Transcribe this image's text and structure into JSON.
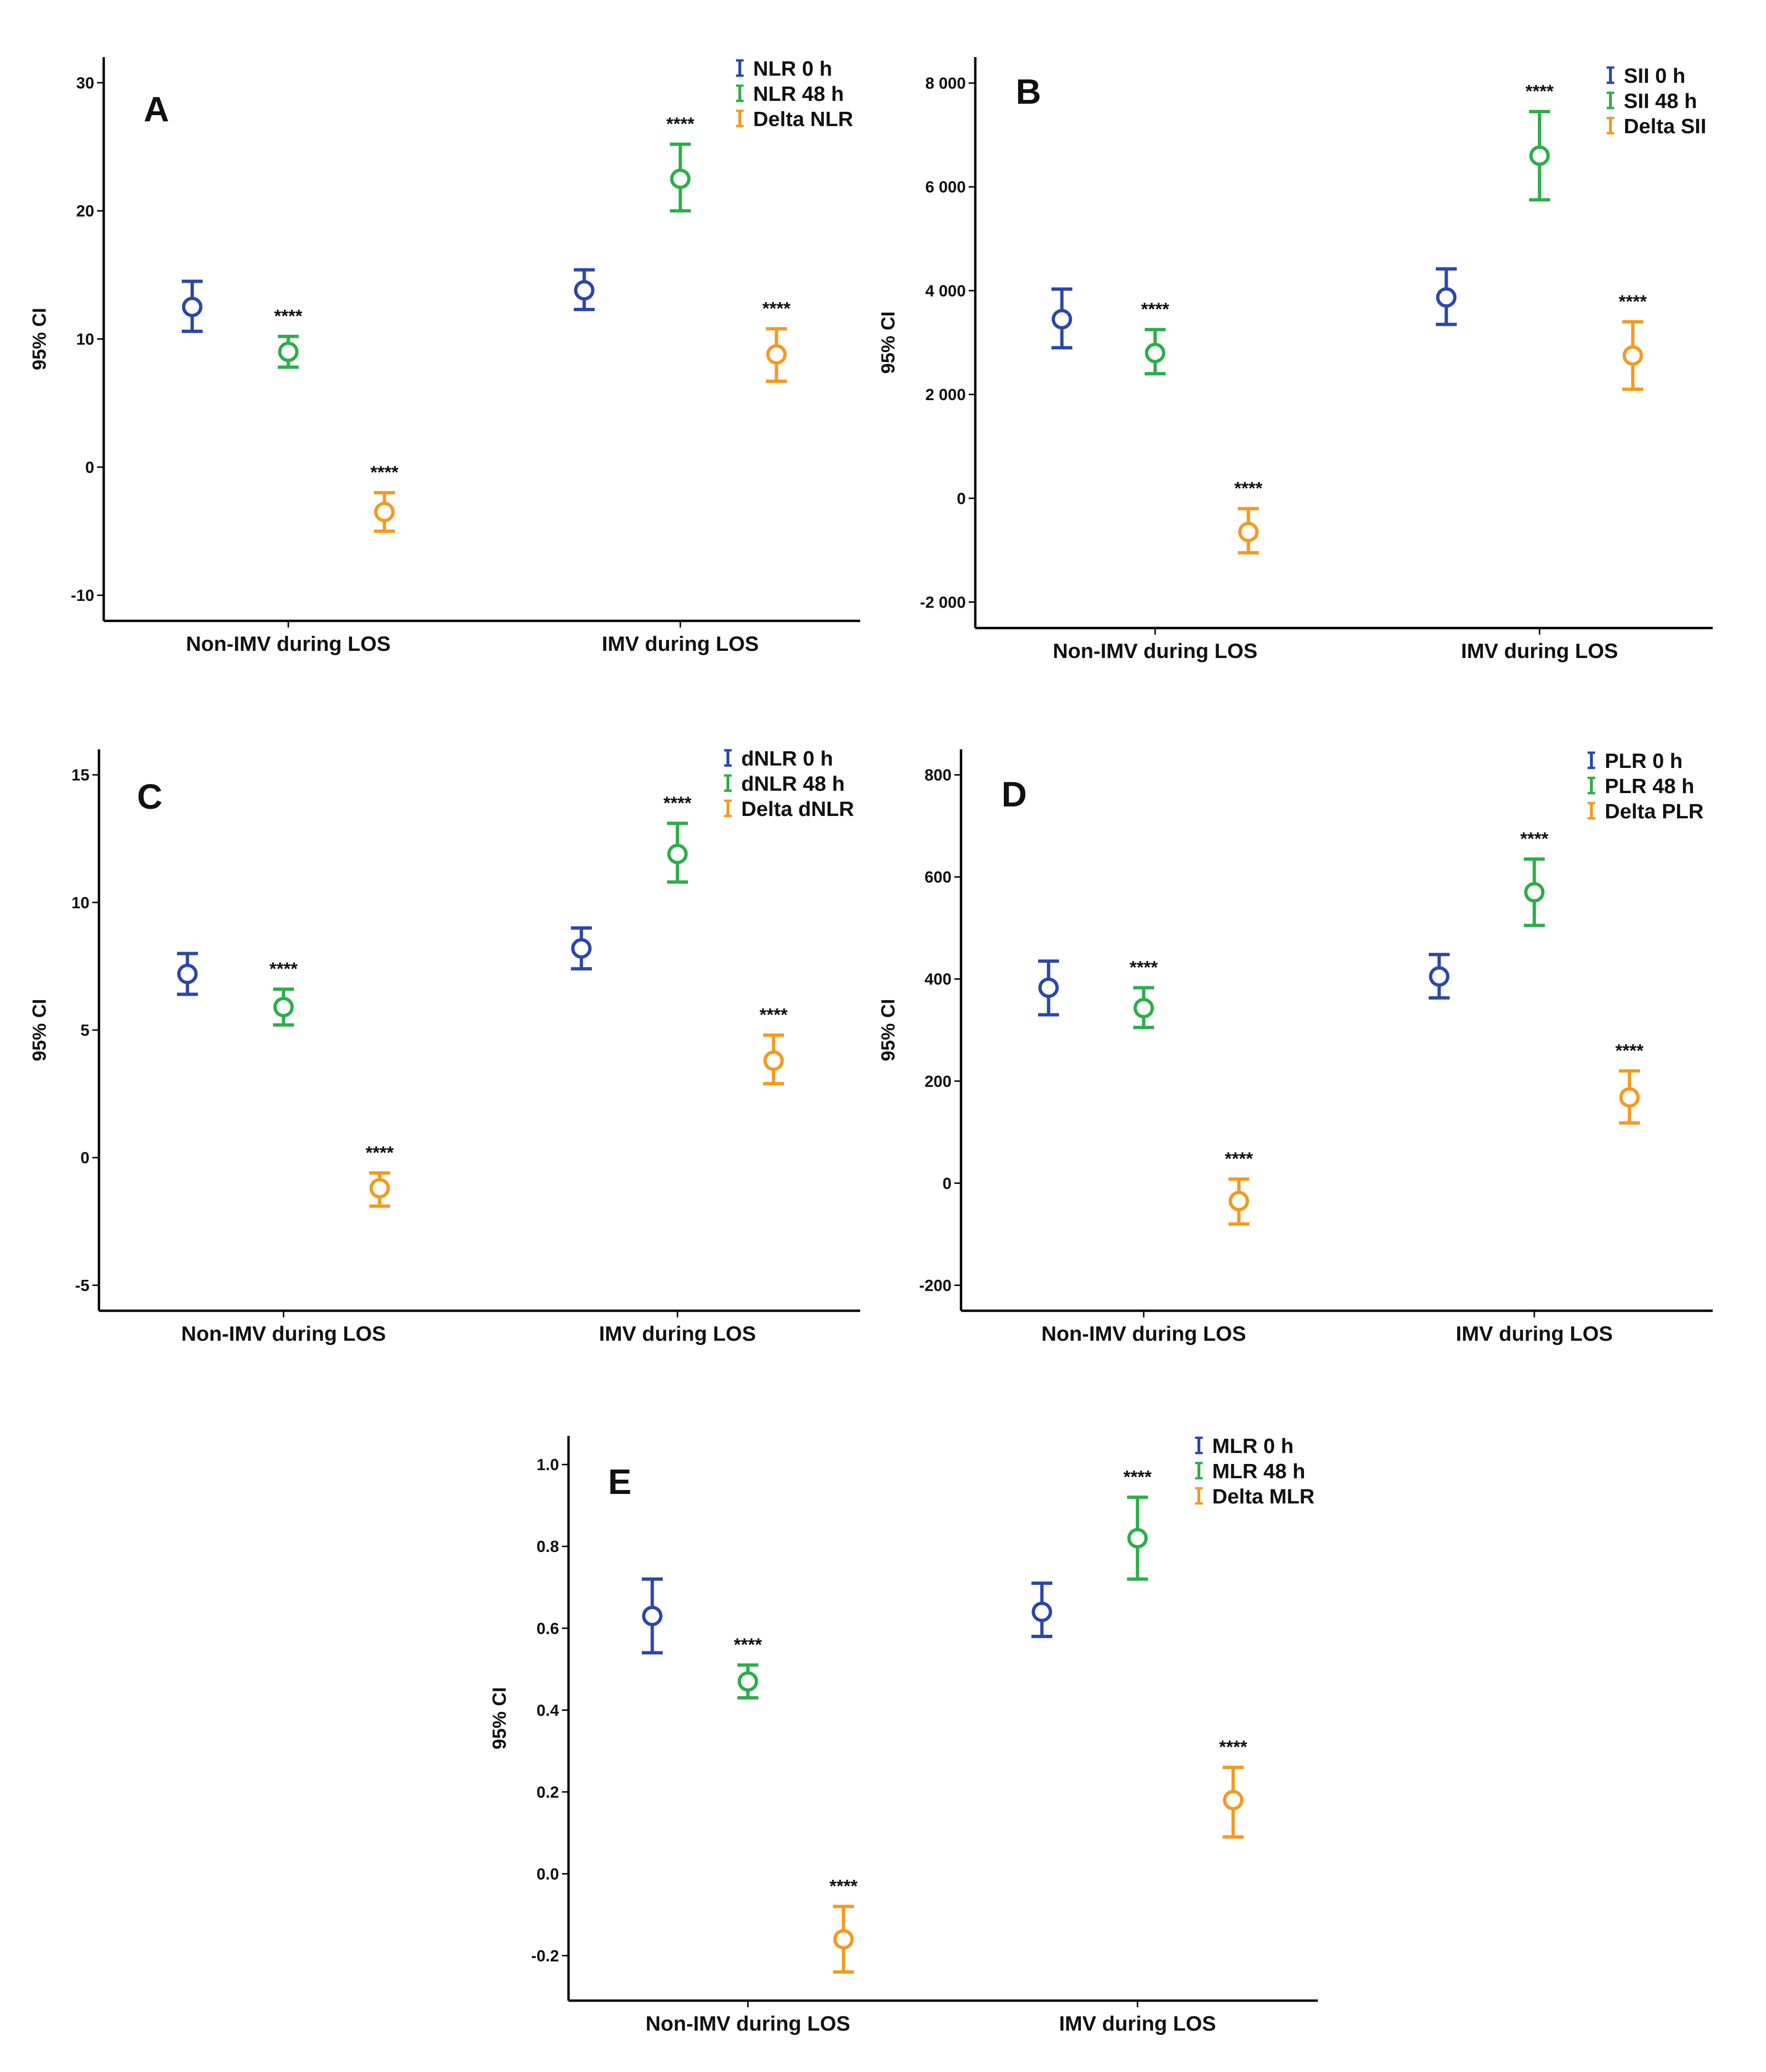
{
  "chart_data": [
    {
      "type": "errorbar",
      "panel": "A",
      "ylabel": "95% CI",
      "categories": [
        "Non-IMV during LOS",
        "IMV during LOS"
      ],
      "yticks": [
        30,
        20,
        10,
        0,
        -10
      ],
      "ylim": [
        -12,
        32
      ],
      "series": [
        {
          "name": "NLR 0 h",
          "color": "#2b48a8",
          "mean": [
            12.5,
            13.8
          ],
          "lower": [
            10.6,
            12.3
          ],
          "upper": [
            14.5,
            15.4
          ],
          "sig": [
            "",
            ""
          ]
        },
        {
          "name": "NLR 48 h",
          "color": "#2cae4a",
          "mean": [
            9.0,
            22.5
          ],
          "lower": [
            7.8,
            20.0
          ],
          "upper": [
            10.2,
            25.2
          ],
          "sig": [
            "****",
            "****"
          ]
        },
        {
          "name": "Delta NLR",
          "color": "#f39a1e",
          "mean": [
            -3.5,
            8.8
          ],
          "lower": [
            -5.0,
            6.7
          ],
          "upper": [
            -2.0,
            10.8
          ],
          "sig": [
            "****",
            "****"
          ]
        }
      ]
    },
    {
      "type": "errorbar",
      "panel": "B",
      "ylabel": "95% CI",
      "categories": [
        "Non-IMV during LOS",
        "IMV during LOS"
      ],
      "yticks": [
        8000,
        6000,
        4000,
        2000,
        0,
        -2000
      ],
      "ytick_labels": [
        "8 000",
        "6 000",
        "4 000",
        "2 000",
        "0",
        "-2 000"
      ],
      "ylim": [
        -2500,
        8500
      ],
      "series": [
        {
          "name": "SII 0 h",
          "color": "#2b48a8",
          "mean": [
            3450,
            3870
          ],
          "lower": [
            2900,
            3350
          ],
          "upper": [
            4030,
            4420
          ],
          "sig": [
            "",
            ""
          ]
        },
        {
          "name": "SII 48 h",
          "color": "#2cae4a",
          "mean": [
            2800,
            6600
          ],
          "lower": [
            2400,
            5750
          ],
          "upper": [
            3250,
            7450
          ],
          "sig": [
            "****",
            "****"
          ]
        },
        {
          "name": "Delta SII",
          "color": "#f39a1e",
          "mean": [
            -650,
            2750
          ],
          "lower": [
            -1050,
            2100
          ],
          "upper": [
            -200,
            3400
          ],
          "sig": [
            "****",
            "****"
          ]
        }
      ]
    },
    {
      "type": "errorbar",
      "panel": "C",
      "ylabel": "95% CI",
      "categories": [
        "Non-IMV during LOS",
        "IMV during LOS"
      ],
      "yticks": [
        15,
        10,
        5,
        0,
        -5
      ],
      "ylim": [
        -6,
        16
      ],
      "series": [
        {
          "name": "dNLR 0 h",
          "color": "#2b48a8",
          "mean": [
            7.2,
            8.2
          ],
          "lower": [
            6.4,
            7.4
          ],
          "upper": [
            8.0,
            9.0
          ],
          "sig": [
            "",
            ""
          ]
        },
        {
          "name": "dNLR 48 h",
          "color": "#2cae4a",
          "mean": [
            5.9,
            11.9
          ],
          "lower": [
            5.2,
            10.8
          ],
          "upper": [
            6.6,
            13.1
          ],
          "sig": [
            "****",
            "****"
          ]
        },
        {
          "name": "Delta dNLR",
          "color": "#f39a1e",
          "mean": [
            -1.2,
            3.8
          ],
          "lower": [
            -1.9,
            2.9
          ],
          "upper": [
            -0.6,
            4.8
          ],
          "sig": [
            "****",
            "****"
          ]
        }
      ]
    },
    {
      "type": "errorbar",
      "panel": "D",
      "ylabel": "95% CI",
      "categories": [
        "Non-IMV during LOS",
        "IMV during LOS"
      ],
      "yticks": [
        800,
        600,
        400,
        200,
        0,
        -200
      ],
      "ylim": [
        -250,
        850
      ],
      "series": [
        {
          "name": "PLR 0 h",
          "color": "#2b48a8",
          "mean": [
            383,
            405
          ],
          "lower": [
            330,
            363
          ],
          "upper": [
            435,
            448
          ],
          "sig": [
            "",
            ""
          ]
        },
        {
          "name": "PLR 48 h",
          "color": "#2cae4a",
          "mean": [
            343,
            570
          ],
          "lower": [
            305,
            505
          ],
          "upper": [
            383,
            635
          ],
          "sig": [
            "****",
            "****"
          ]
        },
        {
          "name": "Delta PLR",
          "color": "#f39a1e",
          "mean": [
            -35,
            168
          ],
          "lower": [
            -80,
            118
          ],
          "upper": [
            8,
            220
          ],
          "sig": [
            "****",
            "****"
          ]
        }
      ]
    },
    {
      "type": "errorbar",
      "panel": "E",
      "ylabel": "95% CI",
      "categories": [
        "Non-IMV during LOS",
        "IMV during LOS"
      ],
      "yticks": [
        1.0,
        0.8,
        0.6,
        0.4,
        0.2,
        0.0,
        -0.2
      ],
      "ytick_labels": [
        "1.0",
        "0.8",
        "0.6",
        "0.4",
        "0.2",
        "0.0",
        "-0.2"
      ],
      "ylim": [
        -0.31,
        1.07
      ],
      "series": [
        {
          "name": "MLR 0 h",
          "color": "#2b48a8",
          "mean": [
            0.63,
            0.64
          ],
          "lower": [
            0.54,
            0.58
          ],
          "upper": [
            0.72,
            0.71
          ],
          "sig": [
            "",
            ""
          ]
        },
        {
          "name": "MLR 48 h",
          "color": "#2cae4a",
          "mean": [
            0.47,
            0.82
          ],
          "lower": [
            0.43,
            0.72
          ],
          "upper": [
            0.51,
            0.92
          ],
          "sig": [
            "****",
            "****"
          ]
        },
        {
          "name": "Delta MLR",
          "color": "#f39a1e",
          "mean": [
            -0.16,
            0.18
          ],
          "lower": [
            -0.24,
            0.09
          ],
          "upper": [
            -0.08,
            0.26
          ],
          "sig": [
            "****",
            "****"
          ]
        }
      ]
    }
  ]
}
